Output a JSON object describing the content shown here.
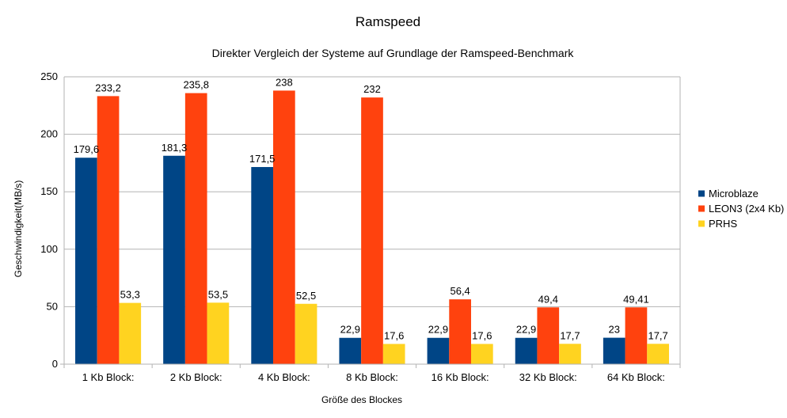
{
  "chart_data": {
    "type": "bar",
    "title": "Ramspeed",
    "subtitle": "Direkter Vergleich der Systeme auf Grundlage der Ramspeed-Benchmark",
    "xlabel": "Größe des Blockes",
    "ylabel": "Geschwindigkeit(MB/s)",
    "ylim": [
      0,
      250
    ],
    "yticks": [
      0,
      50,
      100,
      150,
      200,
      250
    ],
    "grid": true,
    "legend_position": "right",
    "categories": [
      "1 Kb Block:",
      "2 Kb Block:",
      "4 Kb Block:",
      "8 Kb Block:",
      "16 Kb Block:",
      "32 Kb Block:",
      "64 Kb Block:"
    ],
    "series": [
      {
        "name": "Microblaze",
        "color": "#004586",
        "values": [
          179.6,
          181.3,
          171.5,
          22.9,
          22.9,
          22.9,
          23
        ],
        "labels": [
          "179,6",
          "181,3",
          "171,5",
          "22,9",
          "22,9",
          "22,9",
          "23"
        ]
      },
      {
        "name": "LEON3 (2x4 Kb)",
        "color": "#ff420e",
        "values": [
          233.2,
          235.8,
          238,
          232,
          56.4,
          49.4,
          49.41
        ],
        "labels": [
          "233,2",
          "235,8",
          "238",
          "232",
          "56,4",
          "49,4",
          "49,41"
        ]
      },
      {
        "name": "PRHS",
        "color": "#ffd320",
        "values": [
          53.3,
          53.5,
          52.5,
          17.6,
          17.6,
          17.7,
          17.7
        ],
        "labels": [
          "53,3",
          "53,5",
          "52,5",
          "17,6",
          "17,6",
          "17,7",
          "17,7"
        ]
      }
    ]
  }
}
